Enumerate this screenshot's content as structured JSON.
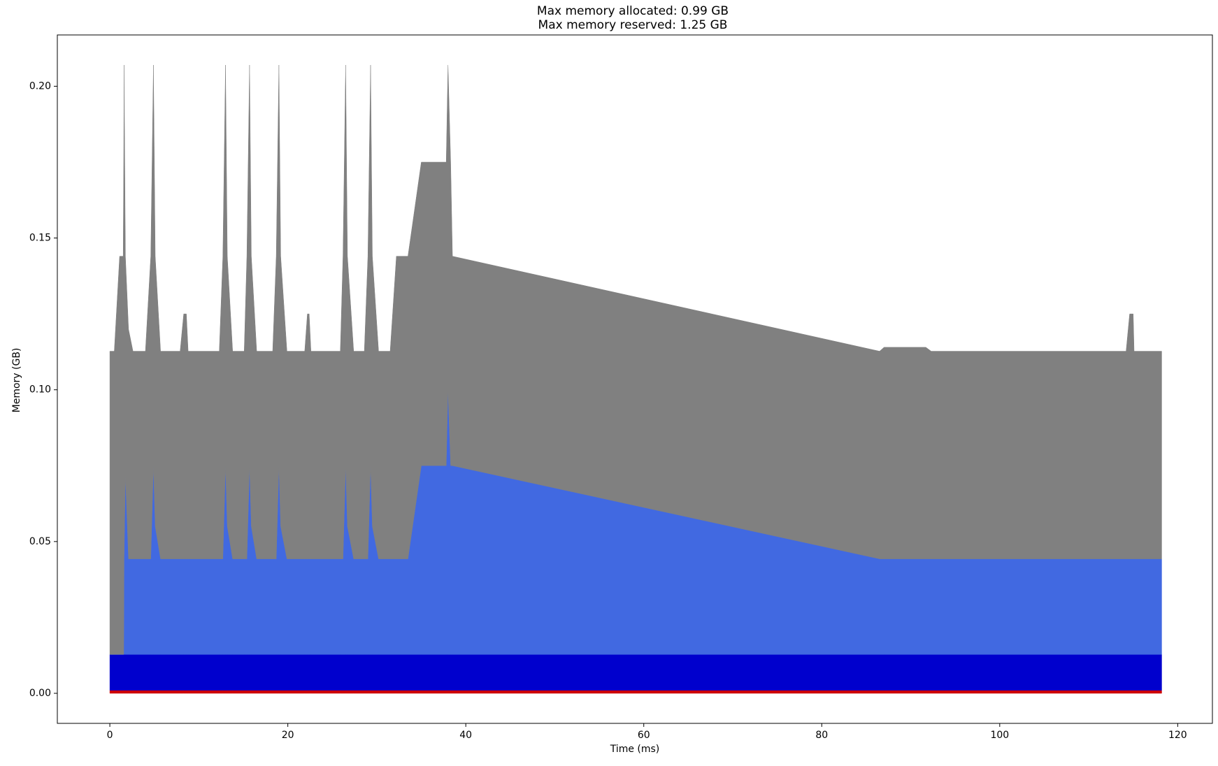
{
  "chart_data": {
    "type": "stacked_area",
    "title": "Max memory allocated: 0.99 GB",
    "subtitle": "Max memory reserved: 1.25 GB",
    "x_label": "Time (ms)",
    "y_label": "Memory (GB)",
    "xlim": [
      -5.9,
      123.9
    ],
    "ylim": [
      -0.0099,
      0.2169
    ],
    "xticks": [
      0,
      20,
      40,
      60,
      80,
      100,
      120
    ],
    "yticks": [
      {
        "value": 0,
        "label": "0.00"
      },
      0.05,
      {
        "value": 0.1,
        "label": "0.10"
      },
      0.15,
      {
        "value": 0.2,
        "label": "0.20"
      }
    ],
    "grid": false,
    "x": [
      0,
      0.5,
      1.1,
      1.5,
      1.56,
      1.6,
      1.75,
      2.1,
      2.6,
      4.0,
      4.6,
      4.9,
      5.1,
      5.7,
      7.9,
      8.3,
      8.6,
      8.8,
      12.3,
      12.7,
      13.0,
      13.2,
      13.8,
      15.1,
      15.4,
      15.7,
      15.9,
      16.5,
      18.3,
      18.7,
      19.0,
      19.2,
      19.9,
      21.9,
      22.2,
      22.4,
      22.6,
      25.9,
      26.2,
      26.5,
      26.7,
      27.4,
      28.6,
      29.0,
      29.3,
      29.5,
      30.2,
      31.5,
      32.2,
      33.5,
      35.0,
      37.8,
      38.0,
      38.3,
      38.5,
      86.5,
      87.0,
      91.7,
      92.3,
      114.2,
      114.6,
      115.0,
      115.1,
      118.2
    ],
    "series": [
      {
        "color": "#cc0000",
        "values": [
          0.001,
          0.001,
          0.001,
          0.001,
          0.001,
          0.001,
          0.001,
          0.001,
          0.001,
          0.001,
          0.001,
          0.001,
          0.001,
          0.001,
          0.001,
          0.001,
          0.001,
          0.001,
          0.001,
          0.001,
          0.001,
          0.001,
          0.001,
          0.001,
          0.001,
          0.001,
          0.001,
          0.001,
          0.001,
          0.001,
          0.001,
          0.001,
          0.001,
          0.001,
          0.001,
          0.001,
          0.001,
          0.001,
          0.001,
          0.001,
          0.001,
          0.001,
          0.001,
          0.001,
          0.001,
          0.001,
          0.001,
          0.001,
          0.001,
          0.001,
          0.001,
          0.001,
          0.001,
          0.001,
          0.001,
          0.001,
          0.001,
          0.001,
          0.001,
          0.001,
          0.001,
          0.001,
          0.001,
          0.001
        ]
      },
      {
        "color": "#0000cd",
        "values": [
          0.0118,
          0.0118,
          0.0118,
          0.0118,
          0.0118,
          0.0118,
          0.0118,
          0.0118,
          0.0118,
          0.0118,
          0.0118,
          0.0118,
          0.0118,
          0.0118,
          0.0118,
          0.0118,
          0.0118,
          0.0118,
          0.0118,
          0.0118,
          0.0118,
          0.0118,
          0.0118,
          0.0118,
          0.0118,
          0.0118,
          0.0118,
          0.0118,
          0.0118,
          0.0118,
          0.0118,
          0.0118,
          0.0118,
          0.0118,
          0.0118,
          0.0118,
          0.0118,
          0.0118,
          0.0118,
          0.0118,
          0.0118,
          0.0118,
          0.0118,
          0.0118,
          0.0118,
          0.0118,
          0.0118,
          0.0118,
          0.0118,
          0.0118,
          0.0118,
          0.0118,
          0.0118,
          0.0118,
          0.0118,
          0.0118,
          0.0118,
          0.0118,
          0.0118,
          0.0118,
          0.0118,
          0.0118,
          0.0118,
          0.0118
        ]
      },
      {
        "color": "#4169e1",
        "values": [
          0,
          0,
          0,
          0,
          0,
          0.0315,
          0.0592,
          0.0315,
          0.0315,
          0.0315,
          0.0315,
          0.0622,
          0.0422,
          0.0315,
          0.0315,
          0.0315,
          0.0315,
          0.0315,
          0.0315,
          0.0315,
          0.0622,
          0.0422,
          0.0315,
          0.0315,
          0.0315,
          0.0622,
          0.0422,
          0.0315,
          0.0315,
          0.0315,
          0.0622,
          0.0422,
          0.0315,
          0.0315,
          0.0315,
          0.0315,
          0.0315,
          0.0315,
          0.0315,
          0.0622,
          0.0422,
          0.0315,
          0.0315,
          0.0315,
          0.0622,
          0.0422,
          0.0315,
          0.0315,
          0.0315,
          0.0315,
          0.0622,
          0.0622,
          0.0872,
          0.0622,
          0.0622,
          0.0315,
          0.0315,
          0.0315,
          0.0315,
          0.0315,
          0.0315,
          0.0315,
          0.0315,
          0.0315
        ]
      },
      {
        "color": "#808080",
        "values": [
          0.0999,
          0.0999,
          0.1312,
          0.1312,
          0.1622,
          0.1627,
          0.072,
          0.0757,
          0.0684,
          0.0684,
          0.0997,
          0.132,
          0.089,
          0.0684,
          0.0684,
          0.0807,
          0.0807,
          0.0684,
          0.0684,
          0.0997,
          0.132,
          0.089,
          0.0684,
          0.0684,
          0.0997,
          0.132,
          0.089,
          0.0684,
          0.0684,
          0.0997,
          0.132,
          0.089,
          0.0684,
          0.0684,
          0.0807,
          0.0807,
          0.0684,
          0.0684,
          0.0997,
          0.132,
          0.089,
          0.0684,
          0.0684,
          0.0997,
          0.132,
          0.089,
          0.0684,
          0.0684,
          0.0997,
          0.0997,
          0.1,
          0.1,
          0.107,
          0.1,
          0.069,
          0.0684,
          0.0697,
          0.0697,
          0.0684,
          0.0684,
          0.0807,
          0.0807,
          0.0684,
          0.0684
        ]
      }
    ]
  }
}
